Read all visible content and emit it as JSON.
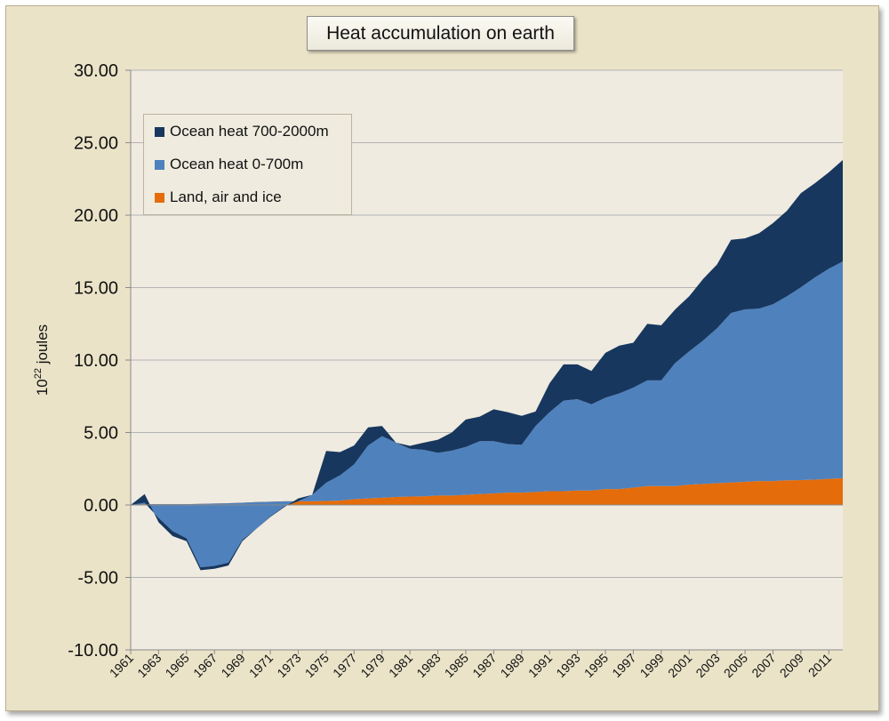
{
  "chart_data": {
    "type": "area",
    "stacked": true,
    "title": "Heat accumulation on earth",
    "ylabel_base": "10",
    "ylabel_exponent": "22",
    "ylabel_unit": " joules",
    "ylim": [
      -10,
      30
    ],
    "yticks": [
      "-10.00",
      "-5.00",
      "0.00",
      "5.00",
      "10.00",
      "15.00",
      "20.00",
      "25.00",
      "30.00"
    ],
    "ytick_values": [
      -10,
      -5,
      0,
      5,
      10,
      15,
      20,
      25,
      30
    ],
    "x": [
      1961,
      1962,
      1963,
      1964,
      1965,
      1966,
      1967,
      1968,
      1969,
      1970,
      1971,
      1972,
      1973,
      1974,
      1975,
      1976,
      1977,
      1978,
      1979,
      1980,
      1981,
      1982,
      1983,
      1984,
      1985,
      1986,
      1987,
      1988,
      1989,
      1990,
      1991,
      1992,
      1993,
      1994,
      1995,
      1996,
      1997,
      1998,
      1999,
      2000,
      2001,
      2002,
      2003,
      2004,
      2005,
      2006,
      2007,
      2008,
      2009,
      2010,
      2011,
      2012
    ],
    "xtick_labels": [
      "1961",
      "1963",
      "1965",
      "1967",
      "1969",
      "1971",
      "1973",
      "1975",
      "1977",
      "1979",
      "1981",
      "1983",
      "1985",
      "1987",
      "1989",
      "1991",
      "1993",
      "1995",
      "1997",
      "1999",
      "2001",
      "2003",
      "2005",
      "2007",
      "2009",
      "2011"
    ],
    "grid": "horizontal",
    "legend_position": "top-left",
    "series": [
      {
        "name": "Land, air and ice",
        "color": "#e46c0a",
        "values": [
          0.0,
          0.05,
          0.05,
          0.05,
          0.05,
          0.08,
          0.1,
          0.12,
          0.15,
          0.2,
          0.22,
          0.25,
          0.25,
          0.25,
          0.28,
          0.3,
          0.4,
          0.45,
          0.5,
          0.55,
          0.58,
          0.6,
          0.65,
          0.65,
          0.7,
          0.75,
          0.8,
          0.85,
          0.85,
          0.9,
          0.95,
          0.95,
          1.0,
          1.0,
          1.1,
          1.1,
          1.2,
          1.3,
          1.3,
          1.3,
          1.4,
          1.45,
          1.5,
          1.55,
          1.6,
          1.65,
          1.65,
          1.7,
          1.72,
          1.75,
          1.8,
          1.85
        ]
      },
      {
        "name": "Ocean heat 0-700m",
        "color": "#4f81bd",
        "values": [
          0.0,
          0.1,
          -0.95,
          -1.85,
          -2.35,
          -4.38,
          -4.3,
          -4.1,
          -2.55,
          -1.85,
          -1.0,
          -0.35,
          0.0,
          0.45,
          1.25,
          1.75,
          2.4,
          3.65,
          4.25,
          3.75,
          3.3,
          3.2,
          2.95,
          3.1,
          3.3,
          3.65,
          3.6,
          3.35,
          3.3,
          4.55,
          5.45,
          6.25,
          6.3,
          5.95,
          6.3,
          6.6,
          6.9,
          7.3,
          7.3,
          8.5,
          9.2,
          9.9,
          10.7,
          11.7,
          11.9,
          11.9,
          12.2,
          12.7,
          13.3,
          13.95,
          14.5,
          14.95
        ]
      },
      {
        "name": "Ocean heat 700-2000m",
        "color": "#17375e",
        "values": [
          0.0,
          0.6,
          -0.3,
          -0.35,
          -0.2,
          -0.2,
          -0.2,
          -0.2,
          -0.1,
          0.0,
          -0.05,
          -0.05,
          0.2,
          0.0,
          2.2,
          1.6,
          1.3,
          1.25,
          0.7,
          0.0,
          0.2,
          0.5,
          0.9,
          1.25,
          1.9,
          1.7,
          2.2,
          2.2,
          2.0,
          1.0,
          2.0,
          2.5,
          2.4,
          2.3,
          3.1,
          3.3,
          3.1,
          3.9,
          3.8,
          3.7,
          3.8,
          4.25,
          4.4,
          5.05,
          4.9,
          5.2,
          5.6,
          5.9,
          6.5,
          6.5,
          6.65,
          7.0
        ]
      }
    ]
  }
}
